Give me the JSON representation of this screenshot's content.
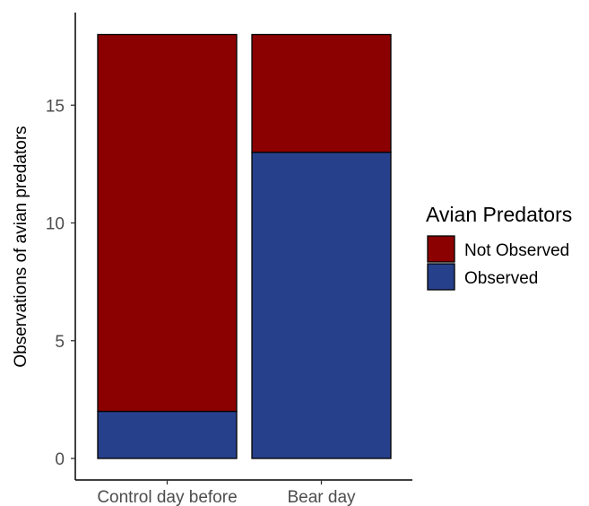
{
  "chart_data": {
    "type": "bar",
    "stacked": true,
    "title": "",
    "xlabel": "",
    "ylabel": "Observations of avian predators",
    "categories": [
      "Control day before",
      "Bear day"
    ],
    "series": [
      {
        "name": "Not Observed",
        "values": [
          16,
          5
        ],
        "color": "#8b0000"
      },
      {
        "name": "Observed",
        "values": [
          2,
          13
        ],
        "color": "#27408b"
      }
    ],
    "ylim": [
      0,
      18
    ],
    "yticks": [
      0,
      5,
      10,
      15
    ],
    "grid": false,
    "legend": {
      "title": "Avian Predators",
      "position": "right",
      "entries": [
        "Not Observed",
        "Observed"
      ]
    }
  }
}
